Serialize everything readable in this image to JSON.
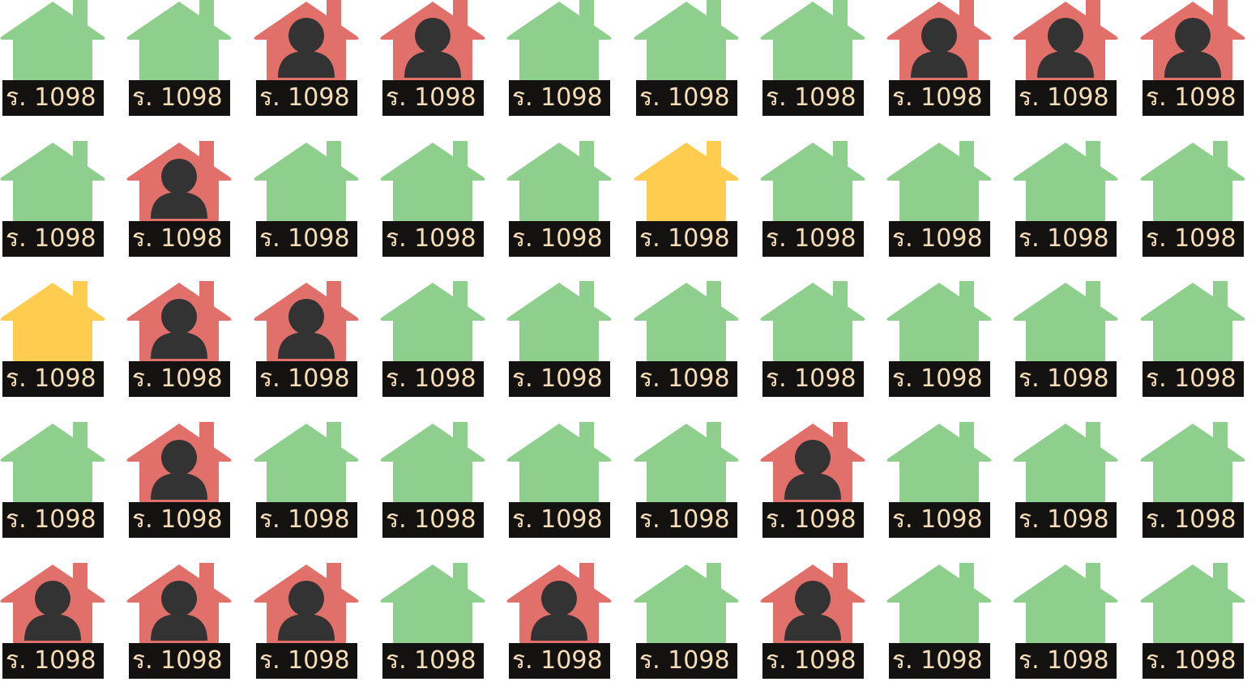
{
  "colors": {
    "vacant": "#8ecf8d",
    "occupied": "#e2706a",
    "reserved": "#fecc4f",
    "person": "#333333",
    "label_bg": "#141111",
    "label_text": "#f6dfb8"
  },
  "houses": [
    {
      "label": "ร. 1098",
      "status": "vacant"
    },
    {
      "label": "ร. 1098",
      "status": "vacant"
    },
    {
      "label": "ร. 1098",
      "status": "occupied"
    },
    {
      "label": "ร. 1098",
      "status": "occupied"
    },
    {
      "label": "ร. 1098",
      "status": "vacant"
    },
    {
      "label": "ร. 1098",
      "status": "vacant"
    },
    {
      "label": "ร. 1098",
      "status": "vacant"
    },
    {
      "label": "ร. 1098",
      "status": "occupied"
    },
    {
      "label": "ร. 1098",
      "status": "occupied"
    },
    {
      "label": "ร. 1098",
      "status": "occupied"
    },
    {
      "label": "ร. 1098",
      "status": "vacant"
    },
    {
      "label": "ร. 1098",
      "status": "occupied"
    },
    {
      "label": "ร. 1098",
      "status": "vacant"
    },
    {
      "label": "ร. 1098",
      "status": "vacant"
    },
    {
      "label": "ร. 1098",
      "status": "vacant"
    },
    {
      "label": "ร. 1098",
      "status": "reserved"
    },
    {
      "label": "ร. 1098",
      "status": "vacant"
    },
    {
      "label": "ร. 1098",
      "status": "vacant"
    },
    {
      "label": "ร. 1098",
      "status": "vacant"
    },
    {
      "label": "ร. 1098",
      "status": "vacant"
    },
    {
      "label": "ร. 1098",
      "status": "reserved"
    },
    {
      "label": "ร. 1098",
      "status": "occupied"
    },
    {
      "label": "ร. 1098",
      "status": "occupied"
    },
    {
      "label": "ร. 1098",
      "status": "vacant"
    },
    {
      "label": "ร. 1098",
      "status": "vacant"
    },
    {
      "label": "ร. 1098",
      "status": "vacant"
    },
    {
      "label": "ร. 1098",
      "status": "vacant"
    },
    {
      "label": "ร. 1098",
      "status": "vacant"
    },
    {
      "label": "ร. 1098",
      "status": "vacant"
    },
    {
      "label": "ร. 1098",
      "status": "vacant"
    },
    {
      "label": "ร. 1098",
      "status": "vacant"
    },
    {
      "label": "ร. 1098",
      "status": "occupied"
    },
    {
      "label": "ร. 1098",
      "status": "vacant"
    },
    {
      "label": "ร. 1098",
      "status": "vacant"
    },
    {
      "label": "ร. 1098",
      "status": "vacant"
    },
    {
      "label": "ร. 1098",
      "status": "vacant"
    },
    {
      "label": "ร. 1098",
      "status": "occupied"
    },
    {
      "label": "ร. 1098",
      "status": "vacant"
    },
    {
      "label": "ร. 1098",
      "status": "vacant"
    },
    {
      "label": "ร. 1098",
      "status": "vacant"
    },
    {
      "label": "ร. 1098",
      "status": "occupied"
    },
    {
      "label": "ร. 1098",
      "status": "occupied"
    },
    {
      "label": "ร. 1098",
      "status": "occupied"
    },
    {
      "label": "ร. 1098",
      "status": "vacant"
    },
    {
      "label": "ร. 1098",
      "status": "occupied"
    },
    {
      "label": "ร. 1098",
      "status": "vacant"
    },
    {
      "label": "ร. 1098",
      "status": "occupied"
    },
    {
      "label": "ร. 1098",
      "status": "vacant"
    },
    {
      "label": "ร. 1098",
      "status": "vacant"
    },
    {
      "label": "ร. 1098",
      "status": "vacant"
    }
  ]
}
